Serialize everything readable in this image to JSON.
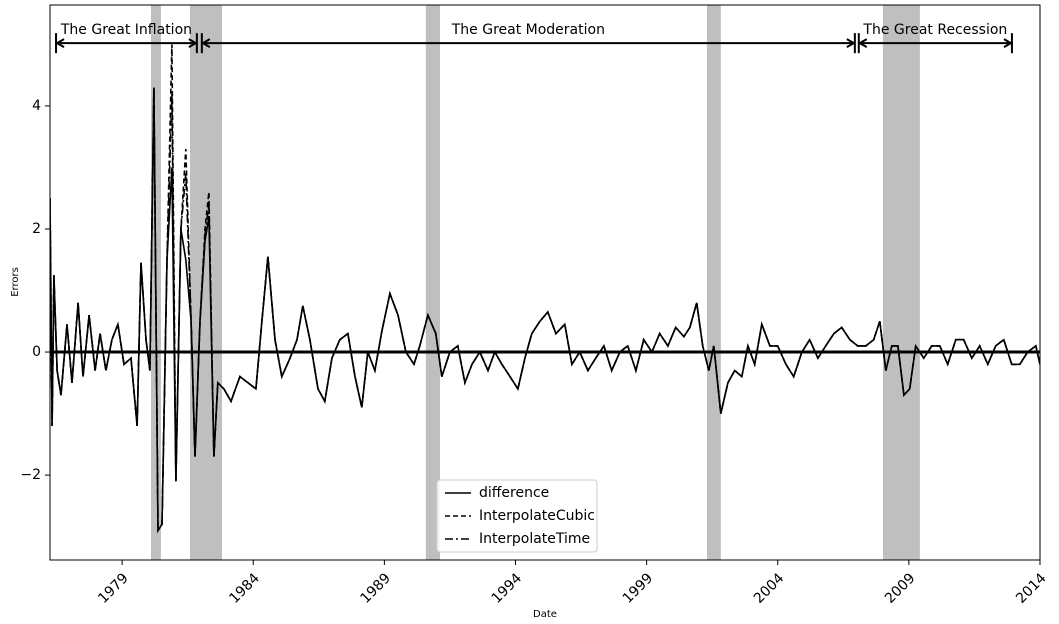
{
  "chart_data": {
    "type": "line",
    "xlabel": "Date",
    "ylabel": "Errors",
    "xlim": [
      1976.25,
      2014
    ],
    "xticks": [
      1979,
      1984,
      1989,
      1994,
      1999,
      2004,
      2009,
      2014
    ],
    "ylim": [
      -3.38,
      5.64
    ],
    "yticks": [
      {
        "value": -2,
        "label": "−2"
      },
      0,
      2,
      4
    ],
    "hline": 0,
    "legend": "lower center",
    "recessions": [
      [
        1980.1,
        1980.48
      ],
      [
        1981.59,
        1982.81
      ],
      [
        1990.58,
        1991.12
      ],
      [
        2001.3,
        2001.83
      ],
      [
        2008.01,
        2009.42
      ]
    ],
    "annotations": [
      {
        "text": "The Great Inflation",
        "start": 1976.48,
        "end": 1981.85,
        "y": 5.02
      },
      {
        "text": "The Great Moderation",
        "start": 1982.04,
        "end": 2006.94,
        "y": 5.02
      },
      {
        "text": "The Great Recession",
        "start": 2007.09,
        "end": 2012.93,
        "y": 5.02
      }
    ],
    "x": [
      1976.25,
      1976.33,
      1976.4,
      1976.52,
      1976.67,
      1976.9,
      1977.09,
      1977.32,
      1977.51,
      1977.74,
      1977.97,
      1978.16,
      1978.38,
      1978.61,
      1978.84,
      1979.07,
      1979.34,
      1979.57,
      1979.72,
      1979.91,
      1980.06,
      1980.21,
      1980.37,
      1980.52,
      1980.71,
      1980.9,
      1981.05,
      1981.24,
      1981.43,
      1981.63,
      1981.78,
      1981.97,
      1982.16,
      1982.31,
      1982.5,
      1982.65,
      1982.88,
      1983.15,
      1983.49,
      1983.8,
      1984.1,
      1984.33,
      1984.56,
      1984.83,
      1985.09,
      1985.4,
      1985.67,
      1985.89,
      1986.16,
      1986.47,
      1986.73,
      1987.0,
      1987.3,
      1987.61,
      1987.88,
      1988.14,
      1988.37,
      1988.64,
      1988.91,
      1989.21,
      1989.52,
      1989.82,
      1990.13,
      1990.35,
      1990.66,
      1990.96,
      1991.19,
      1991.5,
      1991.8,
      1992.07,
      1992.34,
      1992.64,
      1992.95,
      1993.21,
      1993.48,
      1993.79,
      1994.09,
      1994.36,
      1994.62,
      1994.93,
      1995.23,
      1995.54,
      1995.88,
      1996.15,
      1996.45,
      1996.76,
      1997.06,
      1997.37,
      1997.67,
      1997.98,
      1998.28,
      1998.59,
      1998.89,
      1999.2,
      1999.5,
      1999.81,
      2000.11,
      2000.42,
      2000.65,
      2000.91,
      2001.14,
      2001.37,
      2001.56,
      2001.83,
      2002.1,
      2002.36,
      2002.63,
      2002.86,
      2003.12,
      2003.39,
      2003.7,
      2004.0,
      2004.31,
      2004.61,
      2004.92,
      2005.22,
      2005.53,
      2005.83,
      2006.14,
      2006.44,
      2006.75,
      2007.05,
      2007.36,
      2007.66,
      2007.89,
      2008.12,
      2008.35,
      2008.58,
      2008.81,
      2009.03,
      2009.26,
      2009.57,
      2009.87,
      2010.18,
      2010.48,
      2010.79,
      2011.09,
      2011.4,
      2011.7,
      2012.01,
      2012.31,
      2012.62,
      2012.92,
      2013.23,
      2013.53,
      2013.84,
      2014.0
    ],
    "series": [
      {
        "name": "difference",
        "color": "#000000",
        "dash": "solid",
        "values": [
          2.5,
          -1.2,
          1.25,
          -0.3,
          -0.7,
          0.45,
          -0.5,
          0.8,
          -0.4,
          0.6,
          -0.3,
          0.3,
          -0.3,
          0.2,
          0.45,
          -0.2,
          -0.1,
          -1.2,
          1.45,
          0.2,
          -0.3,
          4.3,
          -2.9,
          -2.8,
          1.5,
          3.0,
          -2.1,
          2.0,
          1.5,
          0.5,
          -1.7,
          0.5,
          1.8,
          2.2,
          -1.7,
          -0.5,
          -0.6,
          -0.8,
          -0.4,
          -0.5,
          -0.6,
          0.5,
          1.55,
          0.2,
          -0.4,
          -0.1,
          0.2,
          0.75,
          0.2,
          -0.6,
          -0.8,
          -0.1,
          0.2,
          0.3,
          -0.4,
          -0.9,
          0.0,
          -0.3,
          0.35,
          0.95,
          0.6,
          0.0,
          -0.2,
          0.1,
          0.6,
          0.3,
          -0.4,
          0.0,
          0.1,
          -0.5,
          -0.2,
          0.0,
          -0.3,
          0.0,
          -0.2,
          -0.4,
          -0.6,
          -0.1,
          0.3,
          0.5,
          0.65,
          0.3,
          0.45,
          -0.2,
          0.0,
          -0.3,
          -0.1,
          0.1,
          -0.3,
          0.0,
          0.1,
          -0.3,
          0.2,
          0.0,
          0.3,
          0.1,
          0.4,
          0.25,
          0.4,
          0.8,
          0.1,
          -0.3,
          0.1,
          -1.0,
          -0.5,
          -0.3,
          -0.4,
          0.1,
          -0.2,
          0.45,
          0.1,
          0.1,
          -0.2,
          -0.4,
          0.0,
          0.2,
          -0.1,
          0.1,
          0.3,
          0.4,
          0.2,
          0.1,
          0.1,
          0.2,
          0.5,
          -0.3,
          0.1,
          0.1,
          -0.7,
          -0.6,
          0.1,
          -0.1,
          0.1,
          0.1,
          -0.2,
          0.2,
          0.2,
          -0.1,
          0.1,
          -0.2,
          0.1,
          0.2,
          -0.2,
          -0.2,
          0.0,
          0.1,
          -0.2
        ]
      },
      {
        "name": "InterpolateCubic",
        "color": "#000000",
        "dash": "dashed",
        "values": [
          2.5,
          -1.2,
          1.25,
          -0.3,
          -0.7,
          0.45,
          -0.5,
          0.8,
          -0.4,
          0.6,
          -0.3,
          0.3,
          -0.3,
          0.2,
          0.45,
          -0.2,
          -0.1,
          -1.2,
          1.45,
          0.2,
          -0.3,
          4.3,
          -2.9,
          -2.8,
          1.5,
          5.0,
          -2.1,
          2.0,
          3.3,
          0.5,
          -1.7,
          0.5,
          2.0,
          2.6,
          -1.7,
          -0.5,
          -0.6,
          -0.8,
          -0.4,
          -0.5,
          -0.6,
          0.5,
          1.55,
          0.2,
          -0.4,
          -0.1,
          0.2,
          0.75,
          0.2,
          -0.6,
          -0.8,
          -0.1,
          0.2,
          0.3,
          -0.4,
          -0.9,
          0.0,
          -0.3,
          0.35,
          0.95,
          0.6,
          0.0,
          -0.2,
          0.1,
          0.6,
          0.3,
          -0.4,
          0.0,
          0.1,
          -0.5,
          -0.2,
          0.0,
          -0.3,
          0.0,
          -0.2,
          -0.4,
          -0.6,
          -0.1,
          0.3,
          0.5,
          0.65,
          0.3,
          0.45,
          -0.2,
          0.0,
          -0.3,
          -0.1,
          0.1,
          -0.3,
          0.0,
          0.1,
          -0.3,
          0.2,
          0.0,
          0.3,
          0.1,
          0.4,
          0.25,
          0.4,
          0.8,
          0.1,
          -0.3,
          0.1,
          -1.0,
          -0.5,
          -0.3,
          -0.4,
          0.1,
          -0.2,
          0.45,
          0.1,
          0.1,
          -0.2,
          -0.4,
          0.0,
          0.2,
          -0.1,
          0.1,
          0.3,
          0.4,
          0.2,
          0.1,
          0.1,
          0.2,
          0.5,
          -0.3,
          0.1,
          0.1,
          -0.7,
          -0.6,
          0.1,
          -0.1,
          0.1,
          0.1,
          -0.2,
          0.2,
          0.2,
          -0.1,
          0.1,
          -0.2,
          0.1,
          0.2,
          -0.2,
          -0.2,
          0.0,
          0.1,
          -0.2
        ]
      },
      {
        "name": "InterpolateTime",
        "color": "#000000",
        "dash": "dashdot",
        "values": [
          2.5,
          -1.2,
          1.25,
          -0.3,
          -0.7,
          0.45,
          -0.5,
          0.8,
          -0.4,
          0.6,
          -0.3,
          0.3,
          -0.3,
          0.2,
          0.45,
          -0.2,
          -0.1,
          -1.2,
          1.45,
          0.2,
          -0.3,
          4.3,
          -2.9,
          -2.8,
          1.5,
          4.2,
          -2.1,
          2.0,
          2.9,
          0.5,
          -1.7,
          0.5,
          1.9,
          2.4,
          -1.7,
          -0.5,
          -0.6,
          -0.8,
          -0.4,
          -0.5,
          -0.6,
          0.5,
          1.55,
          0.2,
          -0.4,
          -0.1,
          0.2,
          0.75,
          0.2,
          -0.6,
          -0.8,
          -0.1,
          0.2,
          0.3,
          -0.4,
          -0.9,
          0.0,
          -0.3,
          0.35,
          0.95,
          0.6,
          0.0,
          -0.2,
          0.1,
          0.6,
          0.3,
          -0.4,
          0.0,
          0.1,
          -0.5,
          -0.2,
          0.0,
          -0.3,
          0.0,
          -0.2,
          -0.4,
          -0.6,
          -0.1,
          0.3,
          0.5,
          0.65,
          0.3,
          0.45,
          -0.2,
          0.0,
          -0.3,
          -0.1,
          0.1,
          -0.3,
          0.0,
          0.1,
          -0.3,
          0.2,
          0.0,
          0.3,
          0.1,
          0.4,
          0.25,
          0.4,
          0.8,
          0.1,
          -0.3,
          0.1,
          -1.0,
          -0.5,
          -0.3,
          -0.4,
          0.1,
          -0.2,
          0.45,
          0.1,
          0.1,
          -0.2,
          -0.4,
          0.0,
          0.2,
          -0.1,
          0.1,
          0.3,
          0.4,
          0.2,
          0.1,
          0.1,
          0.2,
          0.5,
          -0.3,
          0.1,
          0.1,
          -0.7,
          -0.6,
          0.1,
          -0.1,
          0.1,
          0.1,
          -0.2,
          0.2,
          0.2,
          -0.1,
          0.1,
          -0.2,
          0.1,
          0.2,
          -0.2,
          -0.2,
          0.0,
          0.1,
          -0.2
        ]
      }
    ]
  }
}
